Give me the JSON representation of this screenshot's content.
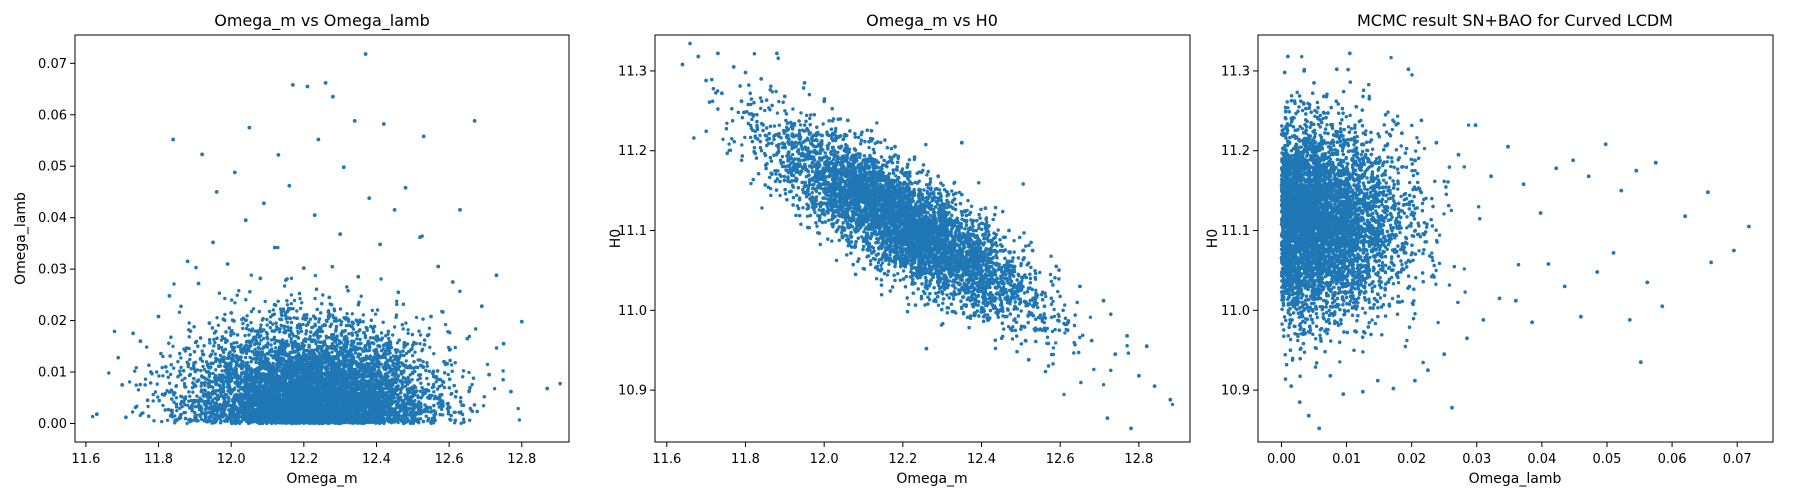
{
  "colors": {
    "points": "#1f77b4",
    "axes": "#000000",
    "background": "#ffffff"
  },
  "chart_data": [
    {
      "type": "scatter",
      "title": "Omega_m vs Omega_lamb",
      "xlabel": "Omega_m",
      "ylabel": "Omega_lamb",
      "xlim": [
        11.57,
        12.93
      ],
      "ylim": [
        -0.0036,
        0.0755
      ],
      "xticks": [
        11.6,
        11.8,
        12.0,
        12.2,
        12.4,
        12.6,
        12.8
      ],
      "xtick_labels": [
        "11.6",
        "11.8",
        "12.0",
        "12.2",
        "12.4",
        "12.6",
        "12.8"
      ],
      "yticks": [
        0.0,
        0.01,
        0.02,
        0.03,
        0.04,
        0.05,
        0.06,
        0.07
      ],
      "ytick_labels": [
        "0.00",
        "0.01",
        "0.02",
        "0.03",
        "0.04",
        "0.05",
        "0.06",
        "0.07"
      ],
      "grid": false,
      "legend": null,
      "points": [
        [
          11.63,
          0.0018
        ],
        [
          11.7,
          0.0075
        ],
        [
          11.71,
          0.0012
        ],
        [
          11.73,
          0.0175
        ],
        [
          11.75,
          0.016
        ],
        [
          11.77,
          0.0045
        ],
        [
          11.8,
          0.0208
        ],
        [
          11.82,
          0.011
        ],
        [
          11.83,
          0.0248
        ],
        [
          11.84,
          0.0552
        ],
        [
          11.86,
          0.0095
        ],
        [
          11.88,
          0.0315
        ],
        [
          11.9,
          0.0042
        ],
        [
          11.91,
          0.0272
        ],
        [
          11.92,
          0.0523
        ],
        [
          11.94,
          0.0195
        ],
        [
          11.95,
          0.0352
        ],
        [
          11.96,
          0.045
        ],
        [
          11.98,
          0.0125
        ],
        [
          11.99,
          0.031
        ],
        [
          12.0,
          0.0215
        ],
        [
          12.01,
          0.0488
        ],
        [
          12.03,
          0.0068
        ],
        [
          12.04,
          0.0395
        ],
        [
          12.05,
          0.0575
        ],
        [
          12.07,
          0.0158
        ],
        [
          12.08,
          0.0282
        ],
        [
          12.09,
          0.0428
        ],
        [
          12.11,
          0.0052
        ],
        [
          12.12,
          0.0342
        ],
        [
          12.13,
          0.0522
        ],
        [
          12.15,
          0.0215
        ],
        [
          12.16,
          0.0462
        ],
        [
          12.17,
          0.0658
        ],
        [
          12.19,
          0.0128
        ],
        [
          12.2,
          0.0302
        ],
        [
          12.21,
          0.0655
        ],
        [
          12.23,
          0.0405
        ],
        [
          12.24,
          0.0552
        ],
        [
          12.25,
          0.0088
        ],
        [
          12.26,
          0.0662
        ],
        [
          12.27,
          0.0245
        ],
        [
          12.28,
          0.0635
        ],
        [
          12.3,
          0.0368
        ],
        [
          12.31,
          0.0498
        ],
        [
          12.33,
          0.0142
        ],
        [
          12.34,
          0.0588
        ],
        [
          12.35,
          0.0285
        ],
        [
          12.37,
          0.0718
        ],
        [
          12.38,
          0.0438
        ],
        [
          12.39,
          0.0185
        ],
        [
          12.41,
          0.0348
        ],
        [
          12.42,
          0.0582
        ],
        [
          12.43,
          0.0078
        ],
        [
          12.45,
          0.0415
        ],
        [
          12.46,
          0.0255
        ],
        [
          12.48,
          0.0458
        ],
        [
          12.5,
          0.0152
        ],
        [
          12.52,
          0.0362
        ],
        [
          12.53,
          0.0558
        ],
        [
          12.55,
          0.0208
        ],
        [
          12.57,
          0.0305
        ],
        [
          12.59,
          0.0115
        ],
        [
          12.61,
          0.0275
        ],
        [
          12.63,
          0.0415
        ],
        [
          12.65,
          0.0165
        ],
        [
          12.67,
          0.0588
        ],
        [
          12.69,
          0.0228
        ],
        [
          12.71,
          0.0095
        ],
        [
          12.73,
          0.0288
        ],
        [
          12.75,
          0.0155
        ],
        [
          12.77,
          0.0062
        ],
        [
          12.8,
          0.0198
        ],
        [
          12.87,
          0.0068
        ]
      ]
    },
    {
      "type": "scatter",
      "title": "Omega_m vs H0",
      "xlabel": "Omega_m",
      "ylabel": "H0",
      "xlim": [
        11.57,
        12.93
      ],
      "ylim": [
        10.835,
        11.345
      ],
      "xticks": [
        11.6,
        11.8,
        12.0,
        12.2,
        12.4,
        12.6,
        12.8
      ],
      "xtick_labels": [
        "11.6",
        "11.8",
        "12.0",
        "12.2",
        "12.4",
        "12.6",
        "12.8"
      ],
      "yticks": [
        10.9,
        11.0,
        11.1,
        11.2,
        11.3
      ],
      "ytick_labels": [
        "10.9",
        "11.0",
        "11.1",
        "11.2",
        "11.3"
      ],
      "grid": false,
      "legend": null,
      "points": [
        [
          11.64,
          11.308
        ],
        [
          11.68,
          11.318
        ],
        [
          11.7,
          11.288
        ],
        [
          11.73,
          11.322
        ],
        [
          11.74,
          11.272
        ],
        [
          11.77,
          11.305
        ],
        [
          11.79,
          11.262
        ],
        [
          11.8,
          11.298
        ],
        [
          11.82,
          11.245
        ],
        [
          11.84,
          11.29
        ],
        [
          11.86,
          11.215
        ],
        [
          11.88,
          11.322
        ],
        [
          11.9,
          11.268
        ],
        [
          11.92,
          11.205
        ],
        [
          11.95,
          11.285
        ],
        [
          11.97,
          11.185
        ],
        [
          12.0,
          11.262
        ],
        [
          12.03,
          11.168
        ],
        [
          12.06,
          11.238
        ],
        [
          12.09,
          11.145
        ],
        [
          12.12,
          11.225
        ],
        [
          12.15,
          11.128
        ],
        [
          12.18,
          11.205
        ],
        [
          12.2,
          11.112
        ],
        [
          12.23,
          11.192
        ],
        [
          12.26,
          11.09
        ],
        [
          12.29,
          11.168
        ],
        [
          12.32,
          11.072
        ],
        [
          12.35,
          11.145
        ],
        [
          12.38,
          11.055
        ],
        [
          12.41,
          11.128
        ],
        [
          12.44,
          11.04
        ],
        [
          12.47,
          11.1
        ],
        [
          12.5,
          11.025
        ],
        [
          12.53,
          11.075
        ],
        [
          12.56,
          11.005
        ],
        [
          12.59,
          11.055
        ],
        [
          12.62,
          10.985
        ],
        [
          12.65,
          11.03
        ],
        [
          12.68,
          10.962
        ],
        [
          12.71,
          11.012
        ],
        [
          12.74,
          10.945
        ],
        [
          12.77,
          10.968
        ],
        [
          12.8,
          10.918
        ],
        [
          12.82,
          10.955
        ],
        [
          12.84,
          10.905
        ],
        [
          12.88,
          10.888
        ],
        [
          12.72,
          10.865
        ],
        [
          12.78,
          10.852
        ],
        [
          12.26,
          10.952
        ],
        [
          12.52,
          10.938
        ],
        [
          12.08,
          11.045
        ],
        [
          12.35,
          11.21
        ],
        [
          11.95,
          11.155
        ]
      ]
    },
    {
      "type": "scatter",
      "title": "MCMC result SN+BAO for Curved LCDM",
      "xlabel": "Omega_lamb",
      "ylabel": "H0",
      "xlim": [
        -0.0036,
        0.0755
      ],
      "ylim": [
        10.835,
        11.345
      ],
      "xticks": [
        0.0,
        0.01,
        0.02,
        0.03,
        0.04,
        0.05,
        0.06,
        0.07
      ],
      "xtick_labels": [
        "0.00",
        "0.01",
        "0.02",
        "0.03",
        "0.04",
        "0.05",
        "0.06",
        "0.07"
      ],
      "yticks": [
        10.9,
        11.0,
        11.1,
        11.2,
        11.3
      ],
      "ytick_labels": [
        "10.9",
        "11.0",
        "11.1",
        "11.2",
        "11.3"
      ],
      "grid": false,
      "legend": null,
      "points": [
        [
          0.0005,
          11.298
        ],
        [
          0.001,
          11.318
        ],
        [
          0.0015,
          10.905
        ],
        [
          0.002,
          11.262
        ],
        [
          0.0028,
          10.885
        ],
        [
          0.0035,
          11.3
        ],
        [
          0.0042,
          10.868
        ],
        [
          0.005,
          11.285
        ],
        [
          0.0058,
          10.852
        ],
        [
          0.0065,
          11.268
        ],
        [
          0.0075,
          10.918
        ],
        [
          0.0085,
          11.302
        ],
        [
          0.0095,
          10.895
        ],
        [
          0.0105,
          11.322
        ],
        [
          0.0115,
          11.255
        ],
        [
          0.0125,
          10.898
        ],
        [
          0.0135,
          11.265
        ],
        [
          0.0148,
          10.912
        ],
        [
          0.016,
          11.245
        ],
        [
          0.0172,
          10.902
        ],
        [
          0.0185,
          11.222
        ],
        [
          0.0195,
          11.302
        ],
        [
          0.0205,
          10.912
        ],
        [
          0.0215,
          11.238
        ],
        [
          0.0225,
          10.925
        ],
        [
          0.0238,
          11.21
        ],
        [
          0.025,
          10.945
        ],
        [
          0.0262,
          10.878
        ],
        [
          0.0272,
          11.195
        ],
        [
          0.0285,
          10.965
        ],
        [
          0.0298,
          11.232
        ],
        [
          0.031,
          10.988
        ],
        [
          0.0322,
          11.168
        ],
        [
          0.0335,
          11.015
        ],
        [
          0.0348,
          11.205
        ],
        [
          0.036,
          11.012
        ],
        [
          0.0372,
          11.158
        ],
        [
          0.0385,
          10.985
        ],
        [
          0.0398,
          11.122
        ],
        [
          0.041,
          11.058
        ],
        [
          0.0422,
          11.178
        ],
        [
          0.0435,
          11.03
        ],
        [
          0.0448,
          11.188
        ],
        [
          0.046,
          10.992
        ],
        [
          0.0472,
          11.168
        ],
        [
          0.0485,
          11.048
        ],
        [
          0.0498,
          11.208
        ],
        [
          0.051,
          11.072
        ],
        [
          0.0522,
          11.15
        ],
        [
          0.0535,
          10.988
        ],
        [
          0.0545,
          11.175
        ],
        [
          0.0552,
          10.935
        ],
        [
          0.0562,
          11.035
        ],
        [
          0.0575,
          11.185
        ],
        [
          0.0585,
          11.005
        ],
        [
          0.062,
          11.118
        ],
        [
          0.0655,
          11.148
        ],
        [
          0.066,
          11.06
        ],
        [
          0.0695,
          11.075
        ],
        [
          0.0718,
          11.105
        ]
      ]
    }
  ]
}
